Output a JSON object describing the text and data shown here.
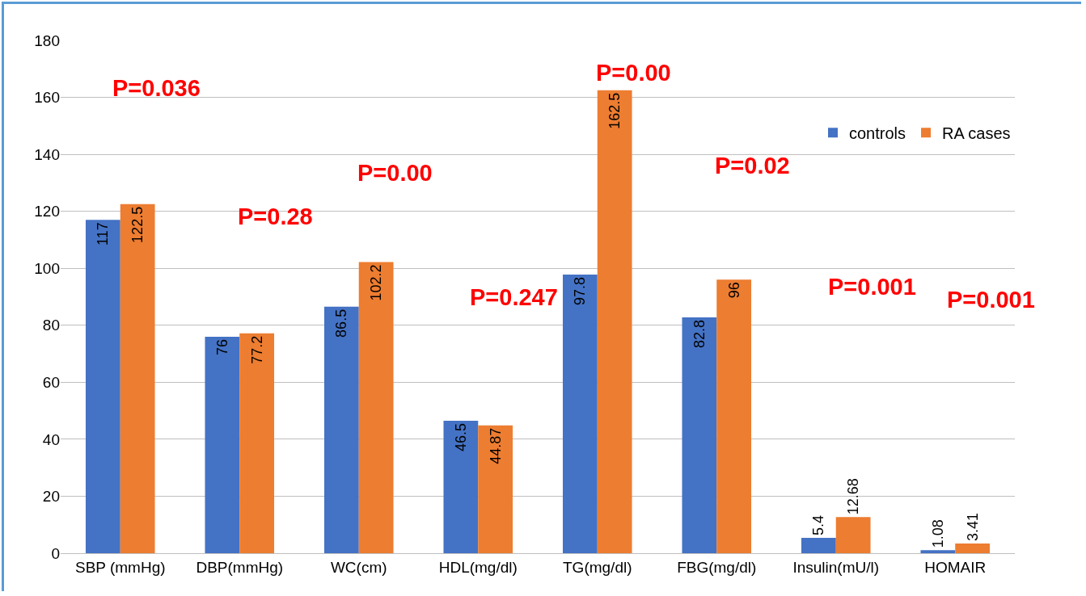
{
  "chart_data": {
    "type": "bar",
    "categories": [
      "SBP (mmHg)",
      "DBP(mmHg)",
      "WC(cm)",
      "HDL(mg/dl)",
      "TG(mg/dl)",
      "FBG(mg/dl)",
      "Insulin(mU/l)",
      "HOMAIR"
    ],
    "series": [
      {
        "name": "controls",
        "color": "#4472c4",
        "values": [
          117,
          76,
          86.5,
          46.5,
          97.8,
          82.8,
          5.4,
          1.08
        ]
      },
      {
        "name": "RA cases",
        "color": "#ed7d31",
        "values": [
          122.5,
          77.2,
          102.2,
          44.87,
          162.5,
          96,
          12.68,
          3.41
        ]
      }
    ],
    "ylim": [
      0,
      180
    ],
    "yticks": [
      0,
      20,
      40,
      60,
      80,
      100,
      120,
      140,
      160,
      180
    ],
    "grid": "y",
    "legend": "top right",
    "data_labels": true,
    "annotations": [
      "P=0.036",
      "P=0.28",
      "P=0.00",
      "P=0.247",
      "P=0.00",
      "P=0.02",
      "P=0.001",
      "P=0.001"
    ]
  }
}
